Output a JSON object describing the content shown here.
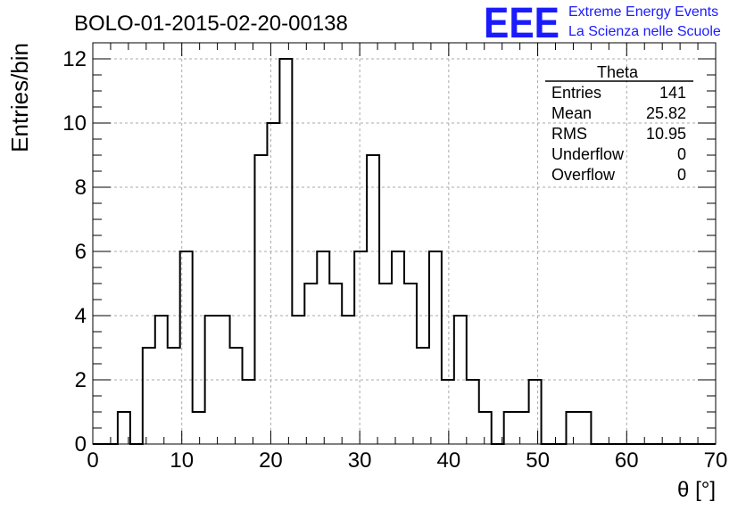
{
  "title": "BOLO-01-2015-02-20-00138",
  "logo": {
    "mark": "EEE",
    "line1": "Extreme Energy Events",
    "line2": "La Scienza nelle Scuole",
    "color": "#1a1aff"
  },
  "stats": {
    "name": "Theta",
    "rows": [
      {
        "label": "Entries",
        "value": "141"
      },
      {
        "label": "Mean",
        "value": "25.82"
      },
      {
        "label": "RMS",
        "value": "10.95"
      },
      {
        "label": "Underflow",
        "value": "0"
      },
      {
        "label": "Overflow",
        "value": "0"
      }
    ]
  },
  "chart_data": {
    "type": "histogram",
    "xlabel": "θ [°]",
    "ylabel": "Entries/bin",
    "xlim": [
      0,
      70
    ],
    "ylim": [
      0,
      12.5
    ],
    "grid": true,
    "bin_width": 1.4,
    "bin_edges_start": 0,
    "xticks": [
      0,
      10,
      20,
      30,
      40,
      50,
      60,
      70
    ],
    "yticks": [
      0,
      2,
      4,
      6,
      8,
      10,
      12
    ],
    "counts": [
      0,
      0,
      1,
      0,
      3,
      4,
      3,
      6,
      1,
      4,
      4,
      3,
      2,
      9,
      10,
      12,
      4,
      5,
      6,
      5,
      4,
      6,
      9,
      5,
      6,
      5,
      3,
      6,
      2,
      4,
      2,
      1,
      0,
      1,
      1,
      2,
      0,
      0,
      1,
      1,
      0,
      0,
      0,
      0,
      0,
      0,
      0,
      0,
      0,
      0
    ]
  }
}
